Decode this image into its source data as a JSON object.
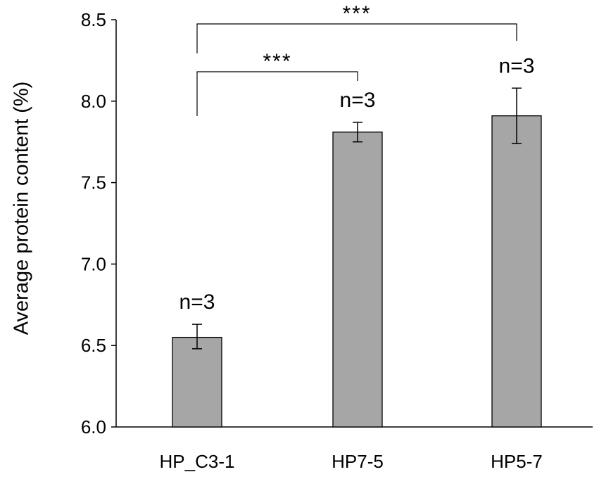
{
  "chart_data": {
    "type": "bar",
    "title": "",
    "xlabel": "",
    "ylabel": "Average protein content (%)",
    "ylim": [
      6.0,
      8.5
    ],
    "yticks": [
      "6.0",
      "6.5",
      "7.0",
      "7.5",
      "8.0",
      "8.5"
    ],
    "categories": [
      "HP_C3-1",
      "HP7-5",
      "HP5-7"
    ],
    "values": [
      6.55,
      7.81,
      7.91
    ],
    "error_low": [
      6.48,
      7.75,
      7.74
    ],
    "error_high": [
      6.63,
      7.87,
      8.08
    ],
    "sample_labels": [
      "n=3",
      "n=3",
      "n=3"
    ],
    "bar_color": "#a6a6a6",
    "grid": false,
    "significance": [
      {
        "from": "HP_C3-1",
        "to": "HP7-5",
        "label": "***"
      },
      {
        "from": "HP_C3-1",
        "to": "HP5-7",
        "label": "***"
      }
    ]
  }
}
